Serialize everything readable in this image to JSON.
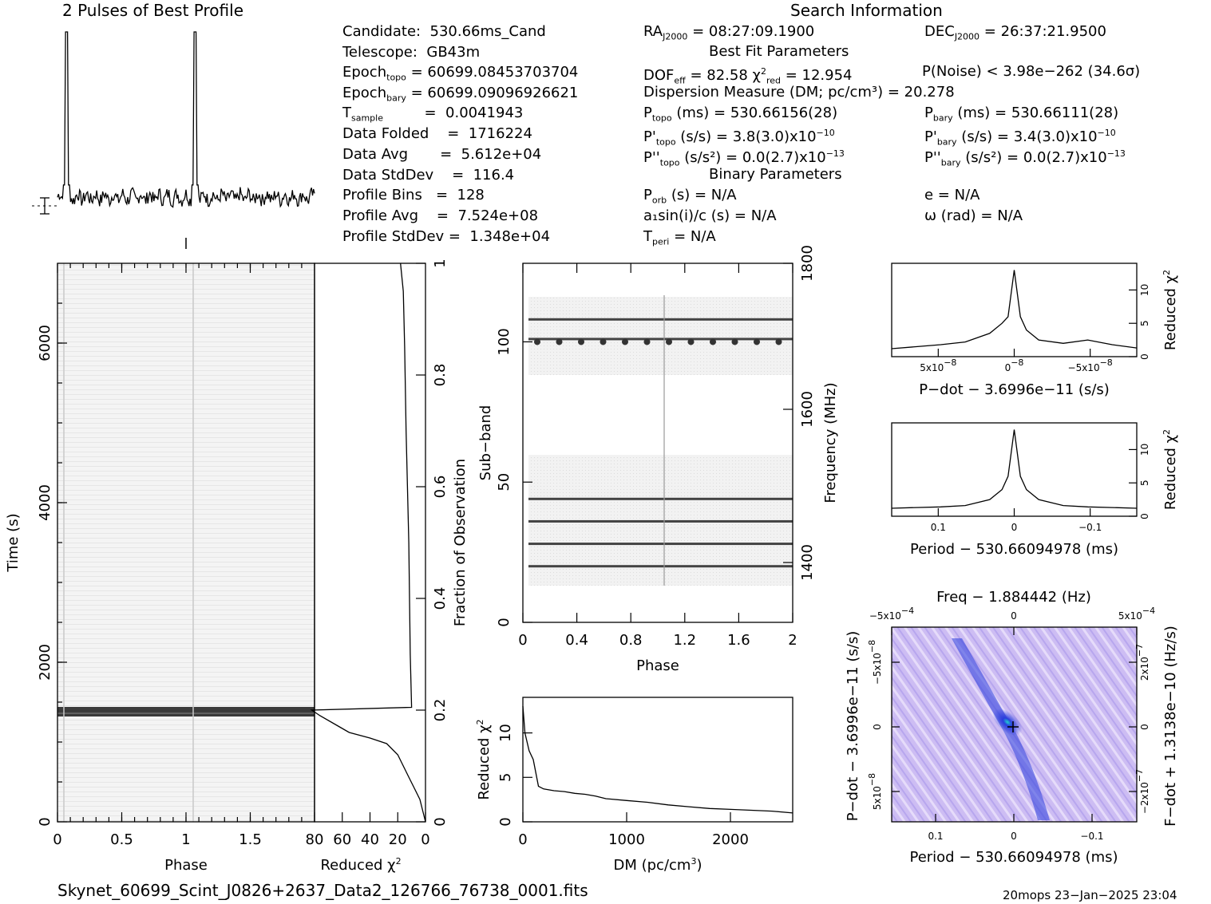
{
  "title_profile": "2 Pulses of Best Profile",
  "title_search": "Search Information",
  "info_left": [
    {
      "label": "Candidate:  530.66ms_Cand",
      "sub": ""
    },
    {
      "label": "Telescope:  GB43m",
      "sub": ""
    },
    {
      "label": "Epoch",
      "sub": "topo",
      "value": " = 60699.08453703704"
    },
    {
      "label": "Epoch",
      "sub": "bary",
      "value": " = 60699.09096926621"
    },
    {
      "label": "T",
      "sub": "sample",
      "value": "         =  0.0041943"
    },
    {
      "label": "Data Folded    =  1716224",
      "sub": ""
    },
    {
      "label": "Data Avg       =  5.612e+04",
      "sub": ""
    },
    {
      "label": "Data StdDev    =  116.4",
      "sub": ""
    },
    {
      "label": "Profile Bins   =  128",
      "sub": ""
    },
    {
      "label": "Profile Avg    =  7.524e+08",
      "sub": ""
    },
    {
      "label": "Profile StdDev =  1.348e+04",
      "sub": ""
    }
  ],
  "ra": {
    "label": "RA",
    "sub": "J2000",
    "value": " = 08:27:09.1900"
  },
  "dec": {
    "label": "DEC",
    "sub": "J2000",
    "value": " = 26:37:21.9500"
  },
  "best_fit_heading": "Best Fit Parameters",
  "dof": {
    "label": "DOF",
    "sub": "eff",
    "value": " = 82.58  χ",
    "sup": "2",
    "sub2": "red",
    "value2": " = 12.954"
  },
  "pnoise": "P(Noise) < 3.98e−262   (34.6σ)",
  "dm_line": "Dispersion Measure (DM; pc/cm³) = 20.278",
  "p_topo": {
    "label": "P",
    "sub": "topo",
    "value": " (ms) =  530.66156(28)"
  },
  "p_bary": {
    "label": "P",
    "sub": "bary",
    "value": " (ms) =  530.66111(28)"
  },
  "pd_topo": {
    "label": "P'",
    "sub": "topo",
    "value": " (s/s) =  3.8(3.0)x10",
    "sup": "−10"
  },
  "pd_bary": {
    "label": "P'",
    "sub": "bary",
    "value": " (s/s) =  3.4(3.0)x10",
    "sup": "−10"
  },
  "pdd_topo": {
    "label": "P''",
    "sub": "topo",
    "value": " (s/s²) = 0.0(2.7)x10",
    "sup": "−13"
  },
  "pdd_bary": {
    "label": "P''",
    "sub": "bary",
    "value": " (s/s²) = 0.0(2.7)x10",
    "sup": "−13"
  },
  "binary_heading": "Binary Parameters",
  "porb": {
    "label": "P",
    "sub": "orb",
    "value": " (s) = N/A"
  },
  "e_line": "e = N/A",
  "a1": "a₁sin(i)/c (s) = N/A",
  "omega": "ω (rad) = N/A",
  "tperi": {
    "label": "T",
    "sub": "peri",
    "value": " = N/A"
  },
  "footer_file": "Skynet_60699_Scint_J0826+2637_Data2_126766_76738_0001.fits",
  "footer_stamp": "20mops 23−Jan−2025 23:04",
  "colors": {
    "ink": "#000000",
    "grey_band": "#404040",
    "ppdot_bg": "#c9b8f2",
    "ppdot_blue": "#1f2fd6",
    "ppdot_cyan": "#20d0d0"
  },
  "chart_data": [
    {
      "name": "profile",
      "type": "line",
      "title": "2 Pulses of Best Profile",
      "x_range": [
        0,
        2
      ],
      "peaks_at_phase": [
        0.07,
        1.07
      ],
      "baseline": 0.05,
      "peak": 1.0
    },
    {
      "name": "time_phase",
      "type": "heatmap",
      "xlabel": "Phase",
      "ylabel": "Time (s)",
      "x_ticks": [
        "0",
        "0.5",
        "1",
        "1.5"
      ],
      "y_ticks": [
        "0",
        "2000",
        "4000",
        "6000"
      ],
      "x_range": [
        0,
        2
      ],
      "y_range": [
        0,
        7000
      ],
      "dark_band_time": 1400
    },
    {
      "name": "reduced_chi2_vs_fraction",
      "type": "line",
      "xlabel": "Reduced χ",
      "xlabel_sup": "2",
      "x_ticks": [
        "80",
        "60",
        "40",
        "20",
        "0"
      ],
      "x_range": [
        80,
        0
      ],
      "y_label_right": "Fraction of Observation",
      "y_ticks": [
        "0",
        "0.2",
        "0.4",
        "0.6",
        "0.8",
        "1"
      ],
      "x": [
        0,
        2,
        4,
        8,
        12,
        16,
        20,
        28,
        40,
        55,
        62,
        76,
        82,
        10,
        11,
        12,
        14,
        15,
        16,
        18
      ],
      "y": [
        0.0,
        0.02,
        0.04,
        0.06,
        0.08,
        0.1,
        0.12,
        0.14,
        0.15,
        0.16,
        0.17,
        0.19,
        0.2,
        0.205,
        0.3,
        0.5,
        0.7,
        0.85,
        0.95,
        1.0
      ]
    },
    {
      "name": "subband_phase",
      "type": "heatmap",
      "xlabel": "Phase",
      "ylabel": "Sub−band",
      "y_label_right": "Frequency (MHz)",
      "x_ticks": [
        "0",
        "0.4",
        "0.8",
        "1.2",
        "1.6",
        "2"
      ],
      "y_ticks": [
        "0",
        "50",
        "100"
      ],
      "y_right_ticks": [
        "1400",
        "1600",
        "1800"
      ],
      "x_range": [
        0,
        2
      ],
      "y_range": [
        0,
        128
      ],
      "dark_rows": [
        20,
        28,
        36,
        44,
        101,
        108
      ]
    },
    {
      "name": "dm_curve",
      "type": "line",
      "xlabel": "DM (pc/cm",
      "xlabel_sup": "3",
      "xlabel_end": ")",
      "ylabel": "Reduced χ",
      "ylabel_sup": "2",
      "x_ticks": [
        "0",
        "1000",
        "2000"
      ],
      "y_ticks": [
        "0",
        "5",
        "10"
      ],
      "x_range": [
        0,
        2600
      ],
      "y_range": [
        0,
        14
      ],
      "x": [
        0,
        20,
        60,
        100,
        150,
        200,
        300,
        400,
        500,
        600,
        700,
        800,
        1000,
        1200,
        1400,
        1600,
        1800,
        2000,
        2200,
        2400,
        2600
      ],
      "y": [
        13,
        10,
        8,
        7,
        4,
        3.7,
        3.5,
        3.4,
        3.2,
        3.1,
        2.9,
        2.6,
        2.4,
        2.2,
        1.9,
        1.7,
        1.5,
        1.4,
        1.3,
        1.2,
        1.0
      ]
    },
    {
      "name": "pdot_curve",
      "type": "line",
      "xlabel": "P−dot − 3.6996e−11 (s/s)",
      "ylabel": "Reduced χ",
      "ylabel_sup": "2",
      "x_ticks": [
        "5x10",
        "0",
        "−5x10"
      ],
      "x_tick_sup": "−8",
      "y_ticks": [
        "0",
        "5",
        "10"
      ],
      "y_range": [
        0,
        14
      ],
      "x": [
        -1,
        -0.8,
        -0.6,
        -0.4,
        -0.2,
        -0.1,
        -0.05,
        0,
        0.05,
        0.1,
        0.2,
        0.4,
        0.6,
        0.8,
        1
      ],
      "y": [
        1.2,
        1.5,
        1.8,
        2.2,
        3.5,
        5.0,
        6.0,
        13.0,
        6.0,
        4.0,
        2.5,
        2.0,
        2.5,
        1.8,
        1.3
      ]
    },
    {
      "name": "period_curve",
      "type": "line",
      "xlabel": "Period − 530.66094978 (ms)",
      "ylabel": "Reduced χ",
      "ylabel_sup": "2",
      "x_ticks": [
        "0.1",
        "0",
        "−0.1"
      ],
      "y_ticks": [
        "0",
        "5",
        "10"
      ],
      "y_range": [
        0,
        14
      ],
      "x": [
        -1,
        -0.8,
        -0.6,
        -0.4,
        -0.2,
        -0.1,
        -0.05,
        0,
        0.05,
        0.1,
        0.2,
        0.4,
        0.6,
        0.8,
        1
      ],
      "y": [
        1.2,
        1.3,
        1.4,
        1.6,
        2.5,
        4.0,
        6.0,
        13.0,
        6.0,
        4.0,
        2.5,
        1.6,
        1.4,
        1.3,
        1.2
      ]
    },
    {
      "name": "ppdot_plane",
      "type": "heatmap",
      "title": "Freq − 1.884442 (Hz)",
      "xlabel": "Period − 530.66094978 (ms)",
      "ylabel": "P−dot − 3.6996e−11 (s/s)",
      "y_label_right": "F−dot + 1.3138e−10 (Hz/s)",
      "x_ticks": [
        "0.1",
        "0",
        "−0.1"
      ],
      "top_ticks": [
        "−5x10",
        "0",
        "5x10"
      ],
      "top_tick_sup": "−4",
      "left_ticks": [
        "−5x10",
        "0",
        "5x10"
      ],
      "left_tick_sup": "−8",
      "right_ticks": [
        "2x10",
        "0",
        "−2x10"
      ],
      "right_tick_sup": "−7"
    }
  ]
}
